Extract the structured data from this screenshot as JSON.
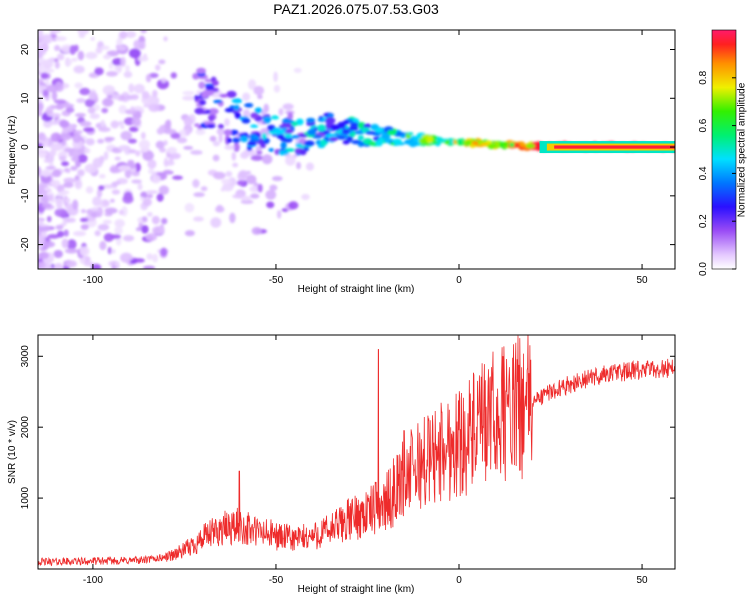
{
  "title": "PAZ1.2026.075.07.53.G03",
  "chart_data": [
    {
      "type": "heatmap",
      "xlabel": "Height of straight line (km)",
      "ylabel": "Frequency (Hz)",
      "xlim": [
        -115,
        59
      ],
      "ylim": [
        -25,
        24
      ],
      "xticks": [
        -100,
        -50,
        0,
        50
      ],
      "yticks": [
        -20,
        -10,
        0,
        10,
        20
      ],
      "colorbar": {
        "label": "Normalized spectral amplitude",
        "range": [
          0.0,
          1.0
        ],
        "ticks": [
          "0.0",
          "0.2",
          "0.4",
          "0.6",
          "0.8"
        ]
      },
      "ridge": {
        "description_points_height_km": [
          -68,
          -60,
          -50,
          -42,
          -35,
          -28,
          -20,
          -10,
          0,
          10,
          20,
          59
        ],
        "peak_frequency_hz": [
          10,
          4,
          3,
          2,
          4,
          3,
          2,
          1.5,
          1,
          0.5,
          0.2,
          0
        ],
        "peak_amplitude": [
          0.35,
          0.45,
          0.5,
          0.55,
          0.5,
          0.55,
          0.6,
          0.75,
          0.85,
          0.92,
          0.97,
          1.0
        ]
      }
    },
    {
      "type": "line",
      "xlabel": "Height of straight line (km)",
      "ylabel": "SNR (10 * v/v)",
      "xlim": [
        -115,
        59
      ],
      "ylim": [
        0,
        3300
      ],
      "xticks": [
        -100,
        -50,
        0,
        50
      ],
      "yticks": [
        1000,
        2000,
        3000
      ],
      "color": "#ee2b2b",
      "series": [
        {
          "name": "SNR",
          "x": [
            -115,
            -100,
            -90,
            -85,
            -80,
            -75,
            -70,
            -65,
            -60,
            -55,
            -50,
            -45,
            -40,
            -35,
            -30,
            -25,
            -20,
            -15,
            -10,
            -5,
            0,
            5,
            10,
            15,
            20,
            25,
            30,
            35,
            40,
            45,
            50,
            55,
            59
          ],
          "values": [
            100,
            110,
            120,
            130,
            170,
            260,
            430,
            560,
            600,
            520,
            470,
            420,
            460,
            550,
            700,
            800,
            920,
            1300,
            1500,
            1650,
            1800,
            1950,
            2150,
            2250,
            2350,
            2500,
            2600,
            2680,
            2750,
            2780,
            2800,
            2820,
            2850
          ]
        }
      ],
      "spikes": [
        {
          "x": -60,
          "y": 1380
        },
        {
          "x": -22,
          "y": 3100
        },
        {
          "x": -15,
          "y": 1950
        },
        {
          "x": 12,
          "y": 3000
        }
      ]
    }
  ]
}
